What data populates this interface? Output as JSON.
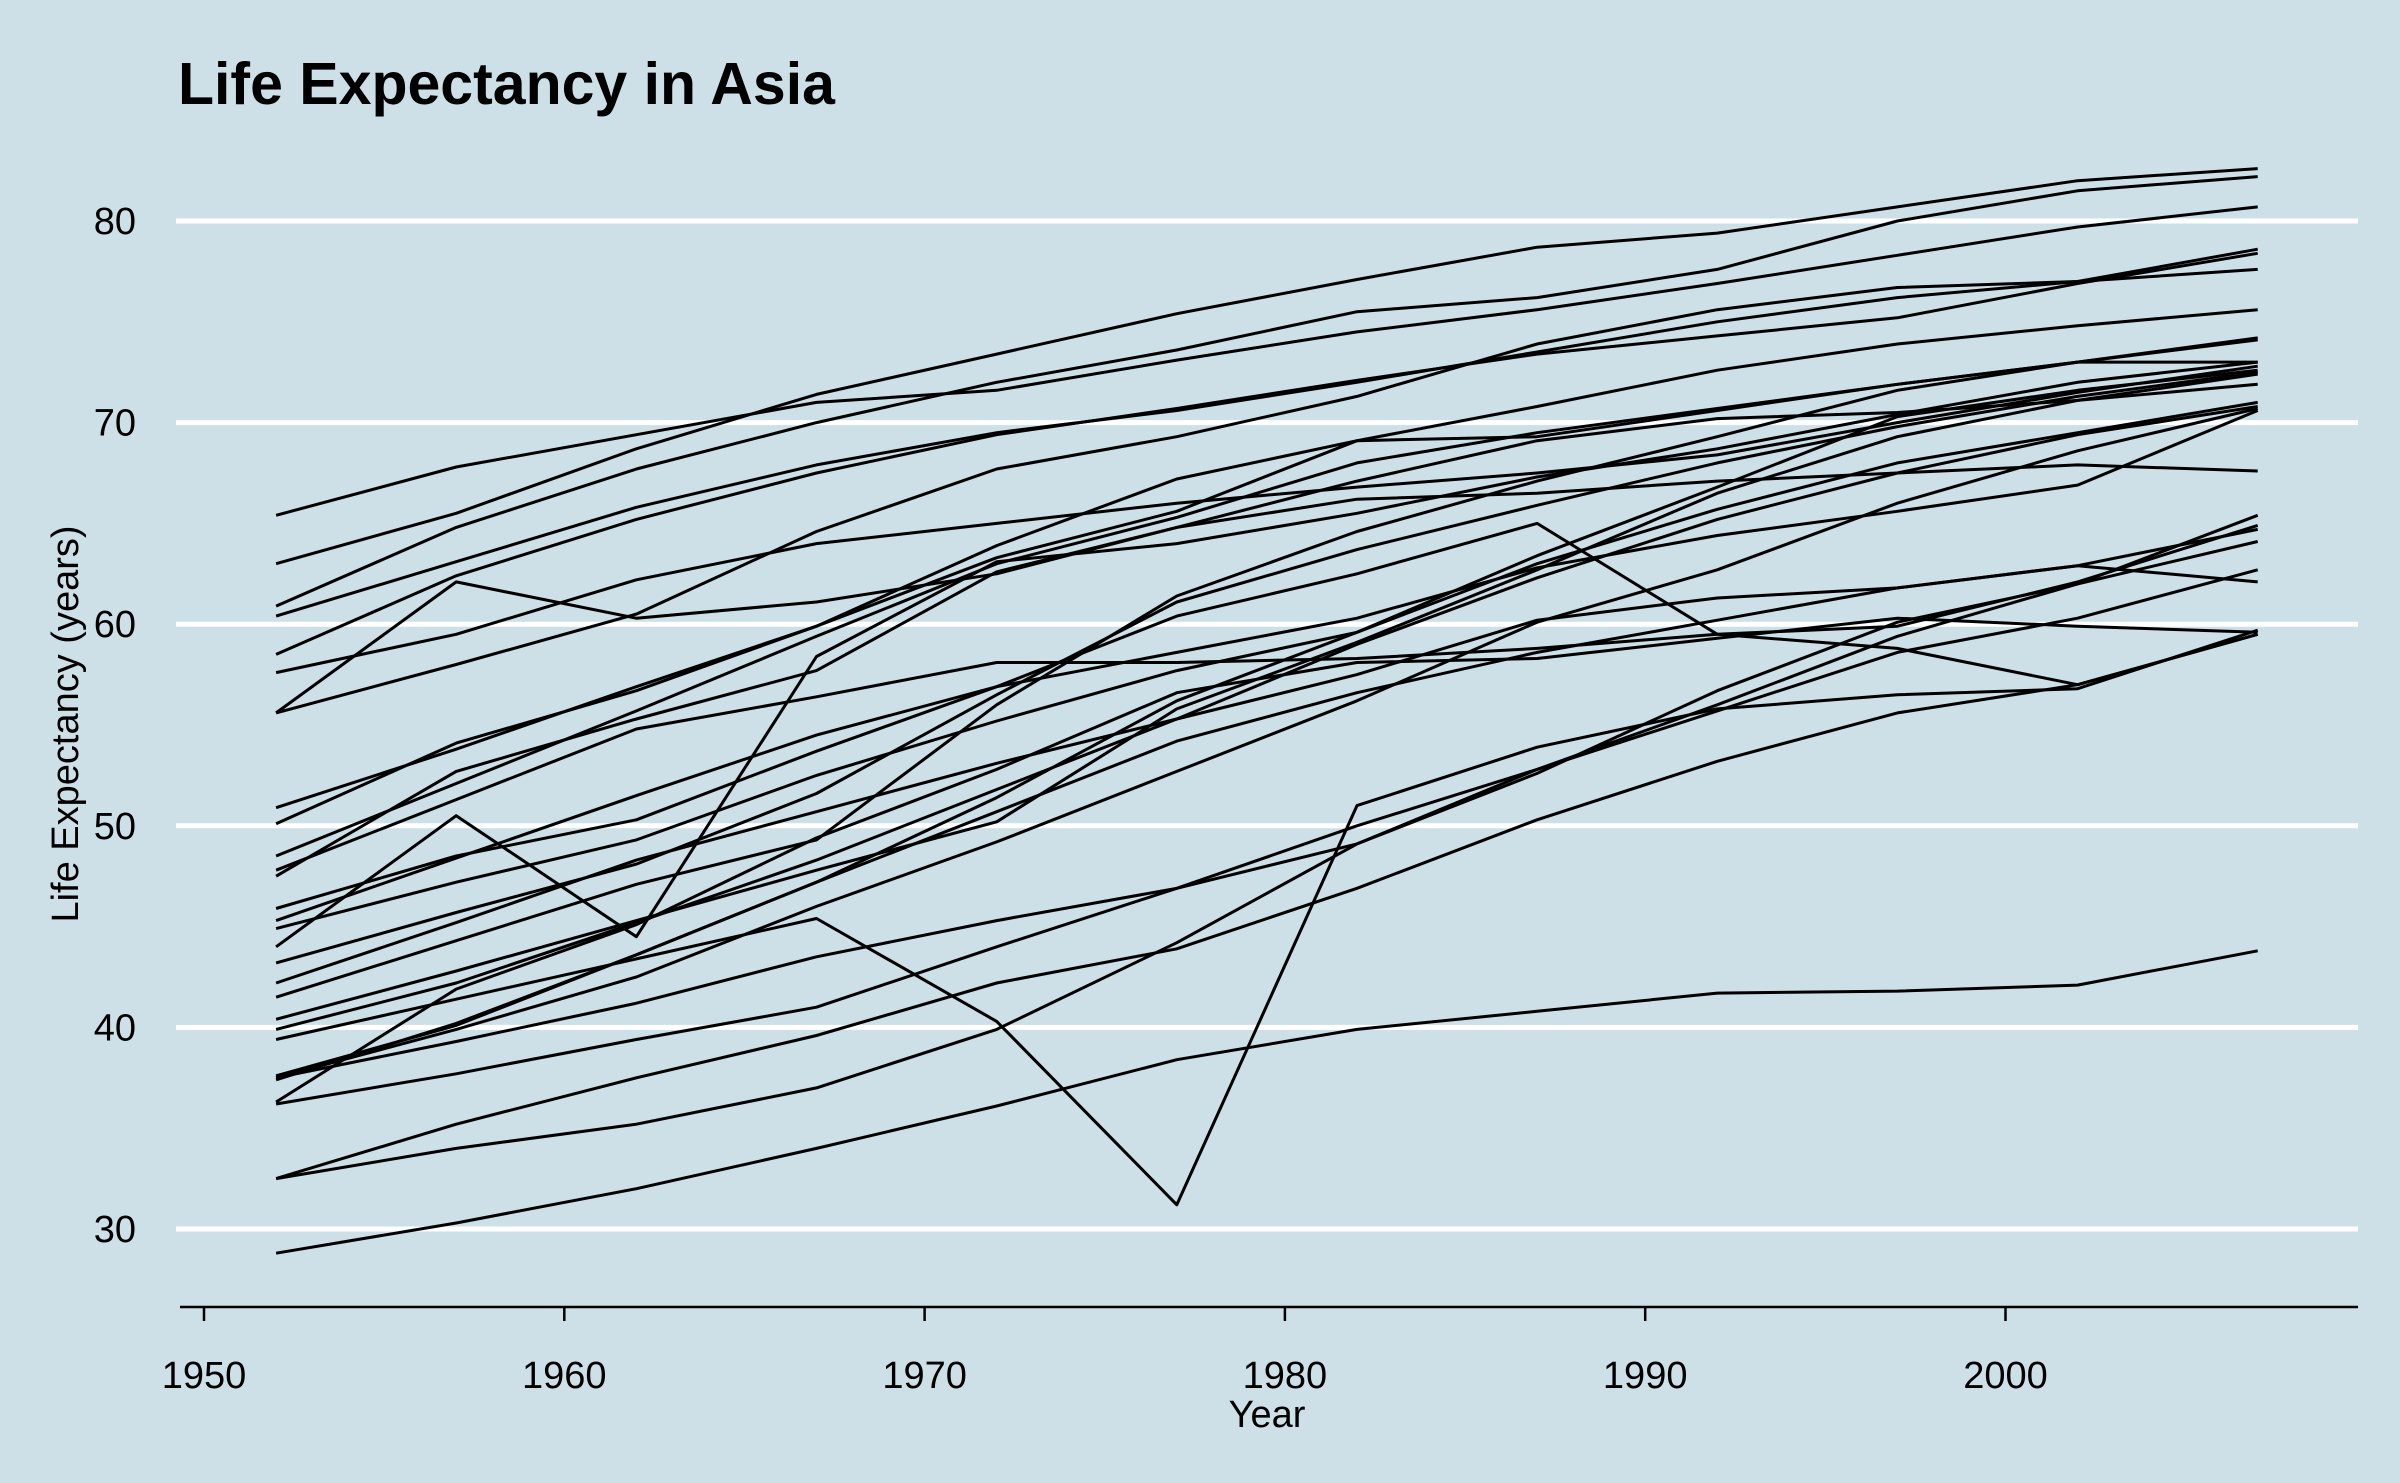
{
  "chart_data": {
    "type": "line",
    "title": "Life Expectancy in Asia",
    "xlabel": "Year",
    "ylabel": "Life Expectancy (years)",
    "xlim": [
      1950,
      2010
    ],
    "ylim": [
      26,
      84
    ],
    "x_ticks": [
      1950,
      1960,
      1970,
      1980,
      1990,
      2000
    ],
    "y_ticks": [
      30,
      40,
      50,
      60,
      70,
      80
    ],
    "grid": "horizontal",
    "legend": "none",
    "line_color": "#000000",
    "background_color": "#cddfe7",
    "x": [
      1952,
      1957,
      1962,
      1967,
      1972,
      1977,
      1982,
      1987,
      1992,
      1997,
      2002,
      2007
    ],
    "series": [
      {
        "values": [
          28.8,
          30.3,
          32.0,
          34.0,
          36.1,
          38.4,
          39.9,
          40.8,
          41.7,
          41.8,
          42.1,
          43.8
        ]
      },
      {
        "values": [
          50.9,
          53.8,
          56.9,
          59.9,
          63.3,
          65.6,
          69.1,
          70.8,
          72.6,
          73.9,
          74.8,
          75.6
        ]
      },
      {
        "values": [
          37.5,
          39.3,
          41.2,
          43.5,
          45.3,
          46.9,
          50.0,
          52.8,
          56.0,
          59.4,
          62.0,
          64.1
        ]
      },
      {
        "values": [
          39.4,
          41.4,
          43.4,
          45.4,
          40.3,
          31.2,
          51.0,
          53.9,
          55.8,
          56.5,
          56.8,
          59.7
        ]
      },
      {
        "values": [
          44.0,
          50.5,
          44.5,
          58.4,
          63.1,
          64.0,
          65.5,
          67.3,
          68.7,
          70.4,
          72.0,
          73.0
        ]
      },
      {
        "values": [
          60.9,
          64.8,
          67.7,
          70.0,
          72.0,
          73.6,
          75.5,
          76.2,
          77.6,
          80.0,
          81.5,
          82.2
        ]
      },
      {
        "values": [
          37.4,
          40.2,
          43.6,
          47.2,
          50.7,
          54.2,
          56.6,
          58.6,
          60.2,
          61.8,
          62.9,
          64.7
        ]
      },
      {
        "values": [
          37.5,
          39.9,
          42.5,
          46.0,
          49.2,
          52.7,
          56.2,
          60.1,
          62.7,
          66.0,
          68.6,
          70.7
        ]
      },
      {
        "values": [
          44.9,
          47.2,
          49.3,
          52.5,
          55.2,
          57.7,
          59.6,
          63.0,
          65.7,
          68.0,
          69.5,
          71.0
        ]
      },
      {
        "values": [
          45.3,
          48.4,
          51.5,
          54.5,
          56.9,
          60.4,
          62.5,
          65.0,
          59.5,
          58.8,
          57.0,
          59.5
        ]
      },
      {
        "values": [
          65.4,
          67.8,
          69.4,
          71.0,
          71.6,
          73.1,
          74.5,
          75.6,
          76.9,
          78.3,
          79.7,
          80.7
        ]
      },
      {
        "values": [
          63.0,
          65.5,
          68.7,
          71.4,
          73.4,
          75.4,
          77.1,
          78.7,
          79.4,
          80.7,
          82.0,
          82.6
        ]
      },
      {
        "values": [
          43.2,
          45.7,
          48.1,
          51.6,
          56.5,
          61.1,
          63.7,
          65.9,
          68.0,
          69.8,
          71.3,
          72.5
        ]
      },
      {
        "values": [
          50.1,
          54.1,
          56.7,
          59.9,
          63.9,
          67.2,
          69.1,
          69.3,
          70.6,
          71.9,
          73.0,
          74.1
        ]
      },
      {
        "values": [
          47.5,
          52.7,
          55.3,
          57.7,
          62.6,
          64.8,
          67.1,
          69.1,
          70.2,
          70.5,
          71.1,
          71.9
        ]
      },
      {
        "values": [
          55.6,
          58.0,
          60.5,
          64.6,
          67.7,
          69.3,
          71.3,
          73.9,
          75.6,
          76.7,
          77.0,
          77.6
        ]
      },
      {
        "values": [
          55.6,
          62.1,
          60.3,
          61.1,
          62.5,
          64.8,
          66.2,
          66.5,
          67.1,
          67.5,
          67.9,
          67.6
        ]
      },
      {
        "values": [
          48.5,
          52.1,
          55.7,
          59.4,
          63.0,
          65.3,
          68.0,
          69.5,
          70.7,
          71.9,
          73.0,
          74.2
        ]
      },
      {
        "values": [
          42.2,
          45.2,
          48.3,
          50.7,
          53.1,
          55.3,
          57.5,
          60.2,
          61.3,
          61.8,
          62.9,
          62.1
        ]
      },
      {
        "values": [
          36.3,
          41.9,
          45.1,
          49.4,
          52.8,
          56.6,
          58.1,
          58.3,
          59.3,
          60.3,
          59.9,
          59.6
        ]
      },
      {
        "values": [
          36.2,
          37.7,
          39.4,
          41.0,
          44.0,
          46.9,
          49.1,
          52.8,
          55.7,
          58.6,
          60.3,
          62.7
        ]
      },
      {
        "values": [
          37.6,
          40.1,
          43.6,
          47.2,
          51.4,
          56.2,
          59.6,
          63.4,
          66.8,
          70.3,
          71.6,
          72.6
        ]
      },
      {
        "values": [
          47.8,
          51.3,
          54.8,
          56.4,
          58.1,
          58.1,
          58.3,
          58.8,
          59.5,
          59.9,
          62.1,
          64.9
        ]
      },
      {
        "values": [
          39.9,
          42.2,
          45.2,
          48.3,
          51.8,
          55.3,
          59.0,
          62.3,
          65.2,
          67.5,
          69.4,
          70.8
        ]
      },
      {
        "values": [
          32.5,
          34.0,
          35.2,
          37.0,
          39.9,
          44.2,
          49.1,
          52.6,
          56.7,
          60.1,
          62.0,
          65.4
        ]
      },
      {
        "values": [
          57.6,
          59.5,
          62.2,
          64.0,
          65.0,
          66.0,
          66.8,
          67.5,
          68.4,
          70.0,
          71.5,
          72.8
        ]
      },
      {
        "values": [
          45.9,
          48.5,
          50.3,
          53.7,
          56.9,
          58.6,
          60.3,
          62.8,
          64.4,
          65.6,
          66.9,
          70.6
        ]
      },
      {
        "values": [
          40.4,
          42.8,
          45.3,
          47.8,
          50.2,
          55.8,
          59.1,
          62.7,
          66.5,
          69.3,
          71.1,
          72.4
        ]
      },
      {
        "values": [
          58.5,
          62.4,
          65.2,
          67.5,
          69.4,
          70.7,
          72.1,
          73.4,
          74.3,
          75.2,
          76.9,
          78.4
        ]
      },
      {
        "values": [
          60.4,
          63.1,
          65.8,
          67.9,
          69.5,
          70.6,
          72.0,
          73.5,
          75.0,
          76.2,
          77.0,
          78.6
        ]
      },
      {
        "values": [
          41.5,
          44.3,
          47.1,
          49.3,
          56.0,
          61.4,
          64.6,
          67.1,
          69.3,
          71.6,
          73.0,
          73.0
        ]
      },
      {
        "values": [
          32.5,
          35.2,
          37.5,
          39.6,
          42.2,
          43.9,
          46.9,
          50.3,
          53.2,
          55.6,
          57.0,
          59.5
        ]
      }
    ]
  }
}
